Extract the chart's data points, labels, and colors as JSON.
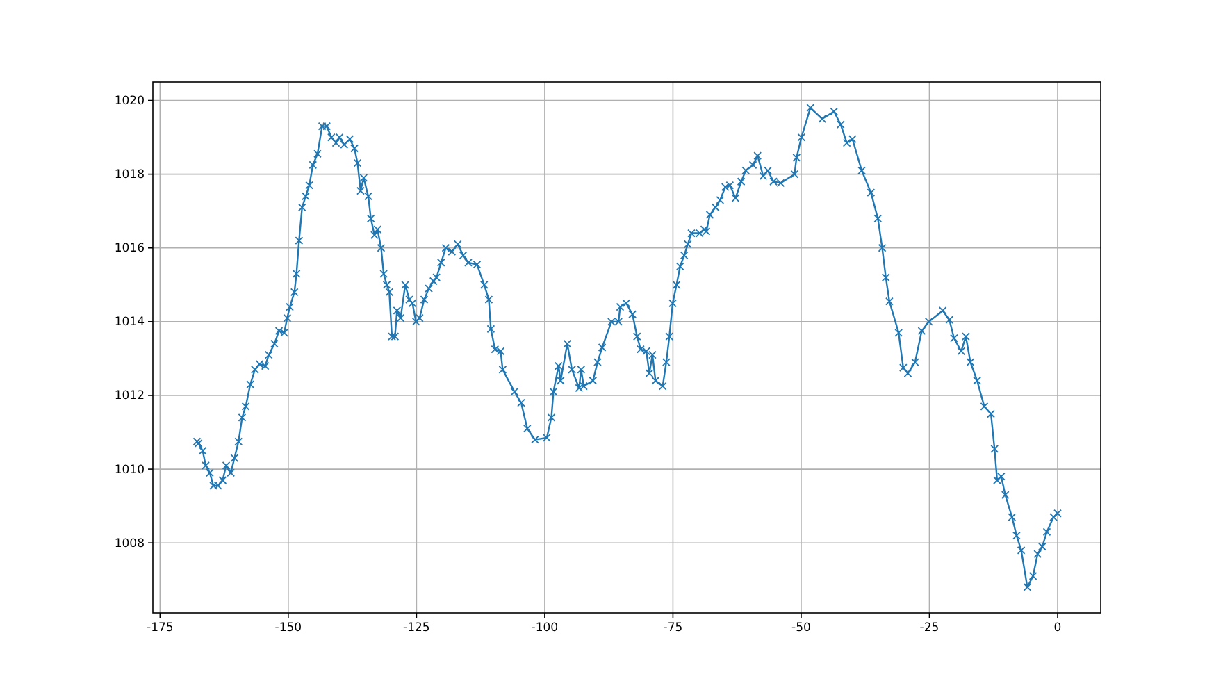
{
  "chart_data": {
    "type": "line",
    "xlim": [
      -176.4,
      8.4
    ],
    "ylim": [
      1006.1,
      1020.5
    ],
    "xticks": [
      -175,
      -150,
      -125,
      -100,
      -75,
      -50,
      -25,
      0
    ],
    "yticks": [
      1008,
      1010,
      1012,
      1014,
      1016,
      1018,
      1020
    ],
    "grid": true,
    "marker": "cross",
    "line_style": "solid",
    "series": [
      {
        "color": "#1f77b4",
        "x": [
          -167.8,
          -167.5,
          -166.7,
          -166.1,
          -165.3,
          -164.6,
          -163.7,
          -162.8,
          -162.1,
          -161.2,
          -160.5,
          -159.7,
          -159.0,
          -158.3,
          -157.4,
          -156.5,
          -155.6,
          -154.5,
          -153.8,
          -152.7,
          -151.8,
          -150.8,
          -150.2,
          -149.7,
          -148.8,
          -148.4,
          -147.9,
          -147.3,
          -146.6,
          -145.9,
          -145.2,
          -144.3,
          -143.4,
          -142.5,
          -141.6,
          -140.7,
          -140.0,
          -139.1,
          -138.0,
          -137.1,
          -136.5,
          -135.9,
          -135.3,
          -134.4,
          -133.9,
          -133.2,
          -132.6,
          -131.9,
          -131.4,
          -130.8,
          -130.3,
          -129.8,
          -129.2,
          -128.8,
          -128.1,
          -127.2,
          -126.4,
          -125.8,
          -125.1,
          -124.4,
          -123.5,
          -122.6,
          -121.7,
          -121.1,
          -120.2,
          -119.3,
          -118.1,
          -116.95,
          -115.9,
          -114.9,
          -113.2,
          -111.8,
          -110.9,
          -110.5,
          -109.7,
          -108.6,
          -108.2,
          -105.9,
          -104.6,
          -103.4,
          -101.9,
          -99.6,
          -98.7,
          -98.3,
          -97.3,
          -96.9,
          -95.6,
          -94.7,
          -93.3,
          -92.9,
          -92.4,
          -90.6,
          -89.7,
          -88.8,
          -87.0,
          -85.6,
          -85.3,
          -84.1,
          -82.9,
          -82.0,
          -81.3,
          -80.2,
          -79.6,
          -79.0,
          -78.4,
          -77.0,
          -76.3,
          -75.7,
          -75.05,
          -74.3,
          -73.6,
          -72.8,
          -72.1,
          -71.4,
          -69.8,
          -68.9,
          -68.5,
          -67.8,
          -66.7,
          -65.8,
          -64.8,
          -63.9,
          -62.8,
          -61.7,
          -60.8,
          -59.4,
          -58.5,
          -57.4,
          -56.5,
          -55.4,
          -54.0,
          -51.3,
          -50.9,
          -49.95,
          -48.2,
          -45.9,
          -43.6,
          -42.3,
          -41.1,
          -40.0,
          -38.2,
          -36.4,
          -35.05,
          -34.2,
          -33.5,
          -32.8,
          -31.0,
          -30.1,
          -29.2,
          -27.8,
          -26.5,
          -25.1,
          -22.4,
          -21.1,
          -20.2,
          -18.8,
          -17.9,
          -17.0,
          -15.7,
          -14.3,
          -13.0,
          -12.3,
          -11.8,
          -11.0,
          -10.2,
          -8.9,
          -8.0,
          -7.1,
          -5.9,
          -4.8,
          -3.9,
          -3.0,
          -2.1,
          -0.8,
          0
        ],
        "values": [
          1010.75,
          1010.7,
          1010.5,
          1010.1,
          1009.9,
          1009.55,
          1009.55,
          1009.7,
          1010.1,
          1009.9,
          1010.3,
          1010.75,
          1011.4,
          1011.7,
          1012.3,
          1012.7,
          1012.85,
          1012.8,
          1013.1,
          1013.4,
          1013.75,
          1013.7,
          1014.1,
          1014.4,
          1014.8,
          1015.3,
          1016.2,
          1017.1,
          1017.4,
          1017.7,
          1018.25,
          1018.55,
          1019.3,
          1019.3,
          1019.0,
          1018.85,
          1019.0,
          1018.8,
          1018.95,
          1018.7,
          1018.3,
          1017.55,
          1017.9,
          1017.4,
          1016.8,
          1016.35,
          1016.5,
          1016.0,
          1015.3,
          1015.0,
          1014.8,
          1013.6,
          1013.6,
          1014.3,
          1014.1,
          1015.0,
          1014.6,
          1014.5,
          1014.0,
          1014.1,
          1014.6,
          1014.9,
          1015.1,
          1015.2,
          1015.6,
          1016.0,
          1015.9,
          1016.1,
          1015.8,
          1015.6,
          1015.55,
          1015.0,
          1014.6,
          1013.8,
          1013.25,
          1013.2,
          1012.7,
          1012.1,
          1011.8,
          1011.1,
          1010.8,
          1010.85,
          1011.4,
          1012.1,
          1012.8,
          1012.4,
          1013.4,
          1012.7,
          1012.2,
          1012.7,
          1012.25,
          1012.4,
          1012.9,
          1013.3,
          1014.0,
          1014.0,
          1014.4,
          1014.5,
          1014.2,
          1013.6,
          1013.25,
          1013.2,
          1012.6,
          1013.1,
          1012.4,
          1012.25,
          1012.9,
          1013.6,
          1014.5,
          1015.0,
          1015.5,
          1015.8,
          1016.1,
          1016.4,
          1016.4,
          1016.5,
          1016.45,
          1016.9,
          1017.1,
          1017.3,
          1017.65,
          1017.7,
          1017.35,
          1017.8,
          1018.1,
          1018.25,
          1018.5,
          1017.95,
          1018.1,
          1017.8,
          1017.76,
          1018.0,
          1018.45,
          1019.0,
          1019.8,
          1019.5,
          1019.7,
          1019.35,
          1018.85,
          1018.95,
          1018.1,
          1017.5,
          1016.8,
          1016.0,
          1015.2,
          1014.55,
          1013.7,
          1012.75,
          1012.6,
          1012.9,
          1013.75,
          1014.0,
          1014.3,
          1014.05,
          1013.55,
          1013.2,
          1013.6,
          1012.9,
          1012.4,
          1011.7,
          1011.5,
          1010.55,
          1009.7,
          1009.8,
          1009.3,
          1008.7,
          1008.2,
          1007.8,
          1006.8,
          1007.1,
          1007.7,
          1007.9,
          1008.3,
          1008.7,
          1008.8
        ]
      }
    ]
  }
}
